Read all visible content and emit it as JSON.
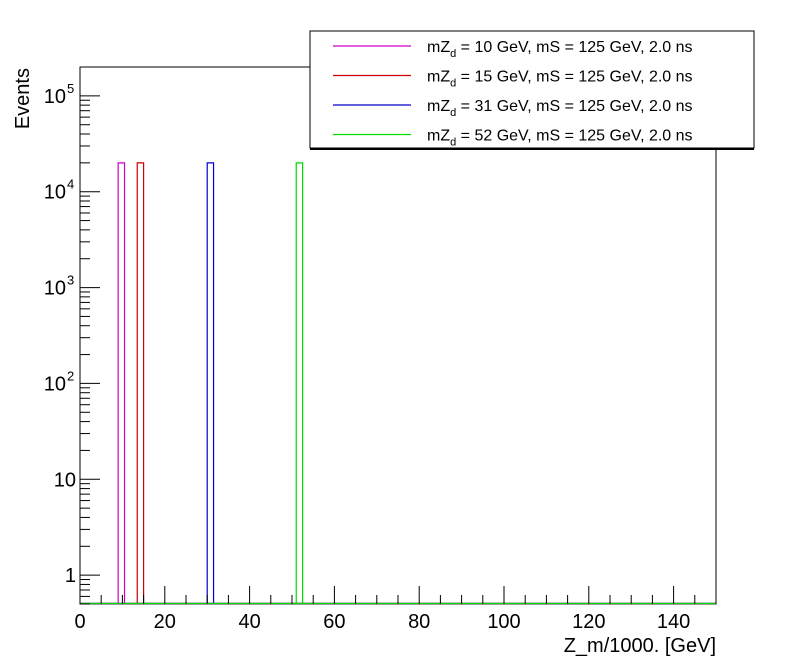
{
  "chart_data": {
    "type": "histogram",
    "xlabel": "Z_m/1000. [GeV]",
    "ylabel": "Events",
    "xlim": [
      0,
      150
    ],
    "ylim": [
      0.5,
      200000
    ],
    "yscale": "log",
    "grid": false,
    "legend_position": "top-right",
    "x_tick_labels": [
      "0",
      "20",
      "40",
      "60",
      "80",
      "100",
      "120",
      "140"
    ],
    "x_ticks": [
      0,
      20,
      40,
      60,
      80,
      100,
      120,
      140
    ],
    "y_ticks": [
      {
        "value": 1,
        "base": "1",
        "exp": ""
      },
      {
        "value": 10,
        "base": "10",
        "exp": ""
      },
      {
        "value": 100,
        "base": "10",
        "exp": "2"
      },
      {
        "value": 1000,
        "base": "10",
        "exp": "3"
      },
      {
        "value": 10000,
        "base": "10",
        "exp": "4"
      },
      {
        "value": 100000,
        "base": "10",
        "exp": "5"
      }
    ],
    "bin_width": 1.5,
    "series": [
      {
        "name_main": "mZ",
        "name_sub": "d",
        "name_rest": " = 10 GeV, mS = 125 GeV, 2.0 ns",
        "color": "#cc00cc",
        "bin_low": 9,
        "count": 20000
      },
      {
        "name_main": "mZ",
        "name_sub": "d",
        "name_rest": " = 15 GeV, mS = 125 GeV, 2.0 ns",
        "color": "#cc0000",
        "bin_low": 13.5,
        "count": 20000
      },
      {
        "name_main": "mZ",
        "name_sub": "d",
        "name_rest": " = 31 GeV, mS = 125 GeV, 2.0 ns",
        "color": "#0000cc",
        "bin_low": 30,
        "count": 20000
      },
      {
        "name_main": "mZ",
        "name_sub": "d",
        "name_rest": " = 52 GeV, mS = 125 GeV, 2.0 ns",
        "color": "#00dd00",
        "bin_low": 51,
        "count": 20000
      }
    ]
  }
}
